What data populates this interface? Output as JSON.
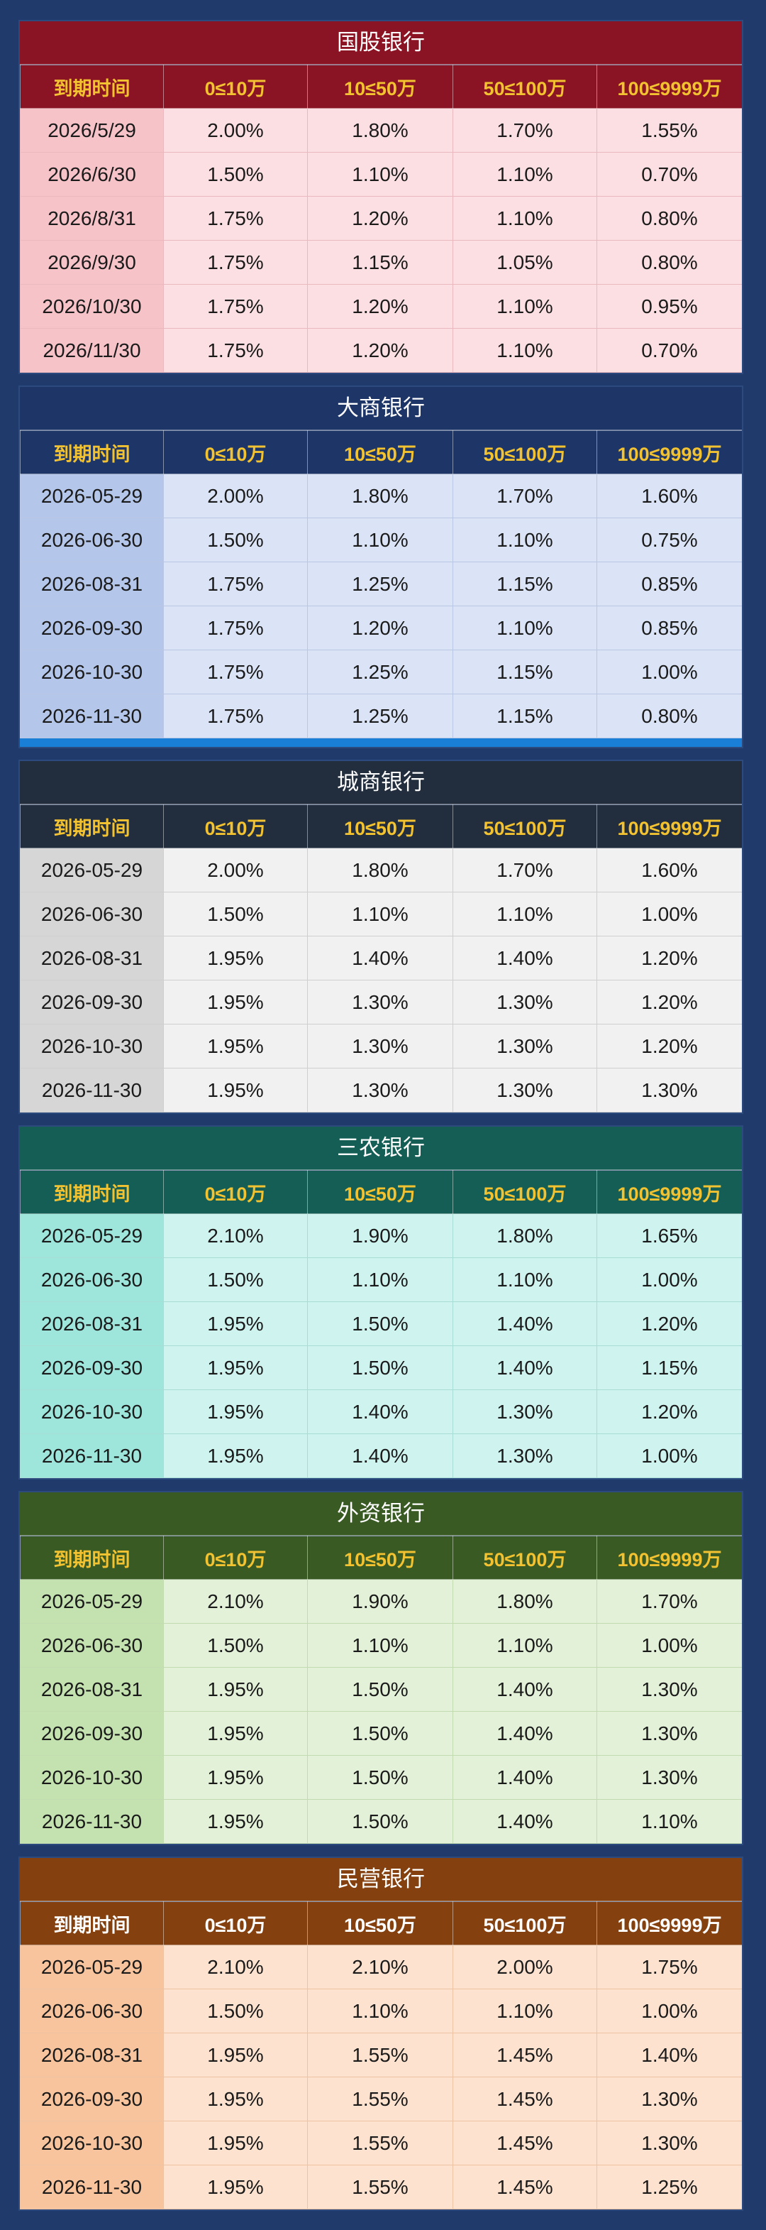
{
  "columns": [
    "到期时间",
    "0≤10万",
    "10≤50万",
    "50≤100万",
    "100≤9999万"
  ],
  "banks": [
    {
      "name": "国股银行",
      "colors": {
        "title": "#8b1424",
        "header": "#8b1424",
        "header_text": "#f2c230",
        "date_bg": "#f6c3c8",
        "cell_bg": "#fcdfe2",
        "cell_border": "#e9b9bf"
      },
      "rows": [
        [
          "2026/5/29",
          "2.00%",
          "1.80%",
          "1.70%",
          "1.55%"
        ],
        [
          "2026/6/30",
          "1.50%",
          "1.10%",
          "1.10%",
          "0.70%"
        ],
        [
          "2026/8/31",
          "1.75%",
          "1.20%",
          "1.10%",
          "0.80%"
        ],
        [
          "2026/9/30",
          "1.75%",
          "1.15%",
          "1.05%",
          "0.80%"
        ],
        [
          "2026/10/30",
          "1.75%",
          "1.20%",
          "1.10%",
          "0.95%"
        ],
        [
          "2026/11/30",
          "1.75%",
          "1.20%",
          "1.10%",
          "0.70%"
        ]
      ]
    },
    {
      "name": "大商银行",
      "colors": {
        "title": "#1e3567",
        "header": "#1e3567",
        "header_text": "#f2c230",
        "date_bg": "#b4c6ea",
        "cell_bg": "#dbe4f6",
        "cell_border": "#b9c7e4"
      },
      "rows": [
        [
          "2026-05-29",
          "2.00%",
          "1.80%",
          "1.70%",
          "1.60%"
        ],
        [
          "2026-06-30",
          "1.50%",
          "1.10%",
          "1.10%",
          "0.75%"
        ],
        [
          "2026-08-31",
          "1.75%",
          "1.25%",
          "1.15%",
          "0.85%"
        ],
        [
          "2026-09-30",
          "1.75%",
          "1.20%",
          "1.10%",
          "0.85%"
        ],
        [
          "2026-10-30",
          "1.75%",
          "1.25%",
          "1.15%",
          "1.00%"
        ],
        [
          "2026-11-30",
          "1.75%",
          "1.25%",
          "1.15%",
          "0.80%"
        ]
      ],
      "accent": "#1a7fd6"
    },
    {
      "name": "城商银行",
      "colors": {
        "title": "#222d3d",
        "header": "#222d3d",
        "header_text": "#f2c230",
        "date_bg": "#d6d6d6",
        "cell_bg": "#f1f1f1",
        "cell_border": "#cfcfcf"
      },
      "rows": [
        [
          "2026-05-29",
          "2.00%",
          "1.80%",
          "1.70%",
          "1.60%"
        ],
        [
          "2026-06-30",
          "1.50%",
          "1.10%",
          "1.10%",
          "1.00%"
        ],
        [
          "2026-08-31",
          "1.95%",
          "1.40%",
          "1.40%",
          "1.20%"
        ],
        [
          "2026-09-30",
          "1.95%",
          "1.30%",
          "1.30%",
          "1.20%"
        ],
        [
          "2026-10-30",
          "1.95%",
          "1.30%",
          "1.30%",
          "1.20%"
        ],
        [
          "2026-11-30",
          "1.95%",
          "1.30%",
          "1.30%",
          "1.30%"
        ]
      ]
    },
    {
      "name": "三农银行",
      "colors": {
        "title": "#155e55",
        "header": "#155e55",
        "header_text": "#f2c230",
        "date_bg": "#9ee6dc",
        "cell_bg": "#cff4f0",
        "cell_border": "#a8ddd6"
      },
      "rows": [
        [
          "2026-05-29",
          "2.10%",
          "1.90%",
          "1.80%",
          "1.65%"
        ],
        [
          "2026-06-30",
          "1.50%",
          "1.10%",
          "1.10%",
          "1.00%"
        ],
        [
          "2026-08-31",
          "1.95%",
          "1.50%",
          "1.40%",
          "1.20%"
        ],
        [
          "2026-09-30",
          "1.95%",
          "1.50%",
          "1.40%",
          "1.15%"
        ],
        [
          "2026-10-30",
          "1.95%",
          "1.40%",
          "1.30%",
          "1.20%"
        ],
        [
          "2026-11-30",
          "1.95%",
          "1.40%",
          "1.30%",
          "1.00%"
        ]
      ]
    },
    {
      "name": "外资银行",
      "colors": {
        "title": "#3a5a23",
        "header": "#3a5a23",
        "header_text": "#f2c230",
        "date_bg": "#c4e2b0",
        "cell_bg": "#e3f1d8",
        "cell_border": "#c3dbb1"
      },
      "rows": [
        [
          "2026-05-29",
          "2.10%",
          "1.90%",
          "1.80%",
          "1.70%"
        ],
        [
          "2026-06-30",
          "1.50%",
          "1.10%",
          "1.10%",
          "1.00%"
        ],
        [
          "2026-08-31",
          "1.95%",
          "1.50%",
          "1.40%",
          "1.30%"
        ],
        [
          "2026-09-30",
          "1.95%",
          "1.50%",
          "1.40%",
          "1.30%"
        ],
        [
          "2026-10-30",
          "1.95%",
          "1.50%",
          "1.40%",
          "1.30%"
        ],
        [
          "2026-11-30",
          "1.95%",
          "1.50%",
          "1.40%",
          "1.10%"
        ]
      ]
    },
    {
      "name": "民营银行",
      "colors": {
        "title": "#84400f",
        "header": "#84400f",
        "header_text": "#ffffff",
        "date_bg": "#f8c49d",
        "cell_bg": "#fde2cf",
        "cell_border": "#eec3a3"
      },
      "rows": [
        [
          "2026-05-29",
          "2.10%",
          "2.10%",
          "2.00%",
          "1.75%"
        ],
        [
          "2026-06-30",
          "1.50%",
          "1.10%",
          "1.10%",
          "1.00%"
        ],
        [
          "2026-08-31",
          "1.95%",
          "1.55%",
          "1.45%",
          "1.40%"
        ],
        [
          "2026-09-30",
          "1.95%",
          "1.55%",
          "1.45%",
          "1.30%"
        ],
        [
          "2026-10-30",
          "1.95%",
          "1.55%",
          "1.45%",
          "1.30%"
        ],
        [
          "2026-11-30",
          "1.95%",
          "1.55%",
          "1.45%",
          "1.25%"
        ]
      ]
    }
  ]
}
